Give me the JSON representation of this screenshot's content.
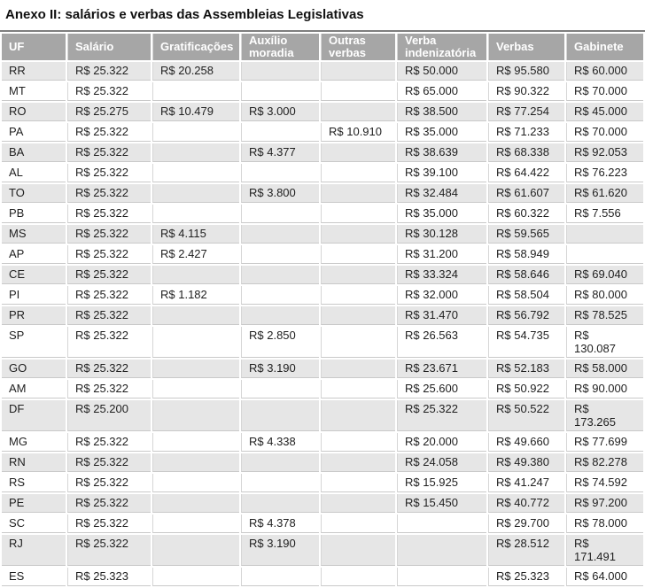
{
  "chart_data": {
    "type": "table",
    "title": "Anexo II: salários e verbas das Assembleias Legislativas",
    "columns": [
      "UF",
      "Salário",
      "Gratificações",
      "Auxílio\nmoradia",
      "Outras\nverbas",
      "Verba\nindenizatória",
      "Verbas",
      "Gabinete"
    ],
    "keys": [
      "uf",
      "salario",
      "gratificacoes",
      "auxilio_moradia",
      "outras_verbas",
      "verba_indenizatoria",
      "verbas",
      "gabinete"
    ],
    "rows": [
      {
        "uf": "RR",
        "salario": "R$ 25.322",
        "gratificacoes": "R$ 20.258",
        "auxilio_moradia": "",
        "outras_verbas": "",
        "verba_indenizatoria": "R$ 50.000",
        "verbas": "R$ 95.580",
        "gabinete": "R$ 60.000"
      },
      {
        "uf": "MT",
        "salario": "R$ 25.322",
        "gratificacoes": "",
        "auxilio_moradia": "",
        "outras_verbas": "",
        "verba_indenizatoria": "R$ 65.000",
        "verbas": "R$ 90.322",
        "gabinete": "R$ 70.000"
      },
      {
        "uf": "RO",
        "salario": "R$ 25.275",
        "gratificacoes": "R$ 10.479",
        "auxilio_moradia": "R$ 3.000",
        "outras_verbas": "",
        "verba_indenizatoria": "R$ 38.500",
        "verbas": "R$ 77.254",
        "gabinete": "R$ 45.000"
      },
      {
        "uf": "PA",
        "salario": "R$ 25.322",
        "gratificacoes": "",
        "auxilio_moradia": "",
        "outras_verbas": "R$ 10.910",
        "verba_indenizatoria": "R$ 35.000",
        "verbas": "R$ 71.233",
        "gabinete": "R$ 70.000"
      },
      {
        "uf": "BA",
        "salario": "R$ 25.322",
        "gratificacoes": "",
        "auxilio_moradia": "R$ 4.377",
        "outras_verbas": "",
        "verba_indenizatoria": "R$ 38.639",
        "verbas": "R$ 68.338",
        "gabinete": "R$ 92.053"
      },
      {
        "uf": "AL",
        "salario": "R$ 25.322",
        "gratificacoes": "",
        "auxilio_moradia": "",
        "outras_verbas": "",
        "verba_indenizatoria": "R$ 39.100",
        "verbas": "R$ 64.422",
        "gabinete": "R$ 76.223"
      },
      {
        "uf": "TO",
        "salario": "R$ 25.322",
        "gratificacoes": "",
        "auxilio_moradia": "R$ 3.800",
        "outras_verbas": "",
        "verba_indenizatoria": "R$ 32.484",
        "verbas": "R$ 61.607",
        "gabinete": "R$ 61.620"
      },
      {
        "uf": "PB",
        "salario": "R$ 25.322",
        "gratificacoes": "",
        "auxilio_moradia": "",
        "outras_verbas": "",
        "verba_indenizatoria": "R$ 35.000",
        "verbas": "R$ 60.322",
        "gabinete": "R$ 7.556"
      },
      {
        "uf": "MS",
        "salario": "R$ 25.322",
        "gratificacoes": "R$ 4.115",
        "auxilio_moradia": "",
        "outras_verbas": "",
        "verba_indenizatoria": "R$ 30.128",
        "verbas": "R$ 59.565",
        "gabinete": ""
      },
      {
        "uf": "AP",
        "salario": "R$ 25.322",
        "gratificacoes": "R$ 2.427",
        "auxilio_moradia": "",
        "outras_verbas": "",
        "verba_indenizatoria": "R$ 31.200",
        "verbas": "R$ 58.949",
        "gabinete": ""
      },
      {
        "uf": "CE",
        "salario": "R$ 25.322",
        "gratificacoes": "",
        "auxilio_moradia": "",
        "outras_verbas": "",
        "verba_indenizatoria": "R$ 33.324",
        "verbas": "R$ 58.646",
        "gabinete": "R$ 69.040"
      },
      {
        "uf": "PI",
        "salario": "R$ 25.322",
        "gratificacoes": "R$ 1.182",
        "auxilio_moradia": "",
        "outras_verbas": "",
        "verba_indenizatoria": "R$ 32.000",
        "verbas": "R$ 58.504",
        "gabinete": "R$ 80.000"
      },
      {
        "uf": "PR",
        "salario": "R$ 25.322",
        "gratificacoes": "",
        "auxilio_moradia": "",
        "outras_verbas": "",
        "verba_indenizatoria": "R$ 31.470",
        "verbas": "R$ 56.792",
        "gabinete": "R$ 78.525"
      },
      {
        "uf": "SP",
        "salario": "R$ 25.322",
        "gratificacoes": "",
        "auxilio_moradia": "R$ 2.850",
        "outras_verbas": "",
        "verba_indenizatoria": "R$ 26.563",
        "verbas": "R$ 54.735",
        "gabinete": "R$\n130.087"
      },
      {
        "uf": "GO",
        "salario": "R$ 25.322",
        "gratificacoes": "",
        "auxilio_moradia": "R$ 3.190",
        "outras_verbas": "",
        "verba_indenizatoria": "R$ 23.671",
        "verbas": "R$ 52.183",
        "gabinete": "R$ 58.000"
      },
      {
        "uf": "AM",
        "salario": "R$ 25.322",
        "gratificacoes": "",
        "auxilio_moradia": "",
        "outras_verbas": "",
        "verba_indenizatoria": "R$ 25.600",
        "verbas": "R$ 50.922",
        "gabinete": "R$ 90.000"
      },
      {
        "uf": "DF",
        "salario": "R$ 25.200",
        "gratificacoes": "",
        "auxilio_moradia": "",
        "outras_verbas": "",
        "verba_indenizatoria": "R$ 25.322",
        "verbas": "R$ 50.522",
        "gabinete": "R$\n173.265"
      },
      {
        "uf": "MG",
        "salario": "R$ 25.322",
        "gratificacoes": "",
        "auxilio_moradia": "R$ 4.338",
        "outras_verbas": "",
        "verba_indenizatoria": "R$ 20.000",
        "verbas": "R$ 49.660",
        "gabinete": "R$ 77.699"
      },
      {
        "uf": "RN",
        "salario": "R$ 25.322",
        "gratificacoes": "",
        "auxilio_moradia": "",
        "outras_verbas": "",
        "verba_indenizatoria": "R$ 24.058",
        "verbas": "R$ 49.380",
        "gabinete": "R$ 82.278"
      },
      {
        "uf": "RS",
        "salario": "R$ 25.322",
        "gratificacoes": "",
        "auxilio_moradia": "",
        "outras_verbas": "",
        "verba_indenizatoria": "R$ 15.925",
        "verbas": "R$ 41.247",
        "gabinete": "R$ 74.592"
      },
      {
        "uf": "PE",
        "salario": "R$ 25.322",
        "gratificacoes": "",
        "auxilio_moradia": "",
        "outras_verbas": "",
        "verba_indenizatoria": "R$ 15.450",
        "verbas": "R$ 40.772",
        "gabinete": "R$ 97.200"
      },
      {
        "uf": "SC",
        "salario": "R$ 25.322",
        "gratificacoes": "",
        "auxilio_moradia": "R$ 4.378",
        "outras_verbas": "",
        "verba_indenizatoria": "",
        "verbas": "R$ 29.700",
        "gabinete": "R$ 78.000"
      },
      {
        "uf": "RJ",
        "salario": "R$ 25.322",
        "gratificacoes": "",
        "auxilio_moradia": "R$ 3.190",
        "outras_verbas": "",
        "verba_indenizatoria": "",
        "verbas": "R$ 28.512",
        "gabinete": "R$\n171.491"
      },
      {
        "uf": "ES",
        "salario": "R$ 25.323",
        "gratificacoes": "",
        "auxilio_moradia": "",
        "outras_verbas": "",
        "verba_indenizatoria": "",
        "verbas": "R$ 25.323",
        "gabinete": "R$ 64.000"
      }
    ]
  },
  "colors": {
    "header_bg": "#a6a6a6",
    "header_text": "#ffffff",
    "row_alt_bg": "#e6e6e6",
    "row_bg": "#ffffff",
    "grid_line": "#c9c9c9",
    "top_border": "#7f7f7f",
    "text": "#1f1f1f"
  }
}
